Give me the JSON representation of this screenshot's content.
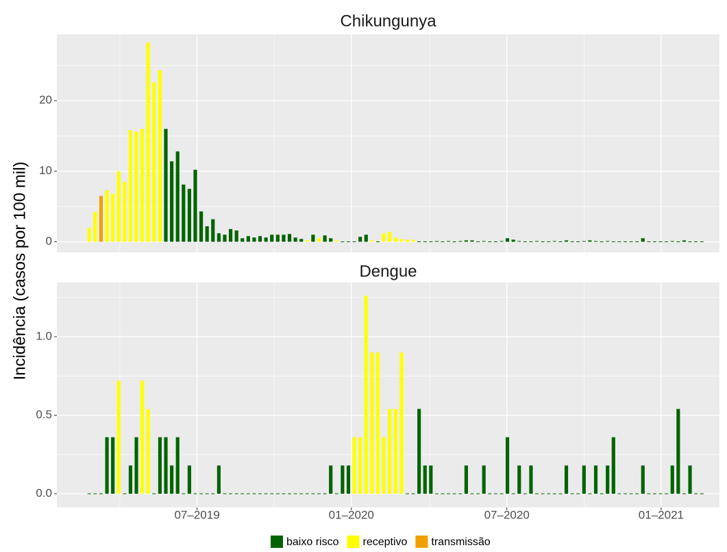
{
  "chart_data": {
    "type": "bar",
    "y_label": "Incidência (casos por 100 mil)",
    "legend": "bottom",
    "grid": true,
    "series": [
      {
        "name": "baixo risco",
        "color": "#006400"
      },
      {
        "name": "receptivo",
        "color": "#ffff00"
      },
      {
        "name": "transmissão",
        "color": "#f0a000"
      }
    ],
    "x": [
      1,
      2,
      3,
      4,
      5,
      6,
      7,
      8,
      9,
      10,
      11,
      12,
      13,
      14,
      15,
      16,
      17,
      18,
      19,
      20,
      21,
      22,
      23,
      24,
      25,
      26,
      27,
      28,
      29,
      30,
      31,
      32,
      33,
      34,
      35,
      36,
      37,
      38,
      39,
      40,
      41,
      42,
      43,
      44,
      45,
      46,
      47,
      48,
      49,
      50,
      51,
      52,
      53,
      54,
      55,
      56,
      57,
      58,
      59,
      60,
      61,
      62,
      63,
      64,
      65,
      66,
      67,
      68,
      69,
      70,
      71,
      72,
      73,
      74,
      75,
      76,
      77,
      78,
      79,
      80,
      81,
      82,
      83,
      84,
      85,
      86,
      87,
      88,
      89,
      90,
      91,
      92,
      93,
      94,
      95,
      96,
      97,
      98,
      99,
      100,
      101,
      102,
      103,
      104,
      105
    ],
    "xlim": [
      -4.5,
      108
    ],
    "xticks": [
      {
        "value": 19.3,
        "label": "07–2019"
      },
      {
        "value": 45.5,
        "label": "01–2020"
      },
      {
        "value": 71.9,
        "label": "07–2020"
      },
      {
        "value": 98.1,
        "label": "01–2021"
      }
    ],
    "panels": [
      {
        "title": "Chikungunya",
        "ylim": [
          -1.5,
          29.4
        ],
        "yticks": [
          0,
          10,
          20
        ],
        "values": [
          [
            null,
            null,
            null,
            null,
            null,
            null,
            null,
            null,
            null,
            null,
            null,
            null,
            null,
            16.0,
            11.4,
            12.8,
            8.1,
            7.5,
            10.2,
            4.3,
            2.2,
            3.2,
            1.2,
            1.0,
            1.8,
            1.6,
            0.5,
            0.8,
            0.6,
            0.8,
            0.6,
            1.0,
            1.0,
            1.0,
            1.1,
            0.6,
            0.4,
            null,
            1.0,
            null,
            0.9,
            0.5,
            null,
            0,
            0,
            0,
            0.7,
            1.0,
            null,
            0,
            null,
            null,
            null,
            null,
            null,
            null,
            0,
            0,
            0,
            0.1,
            0,
            0.1,
            0,
            0.1,
            0.2,
            0.2,
            0,
            0.1,
            0,
            0,
            0.1,
            0.5,
            0.3,
            0.1,
            0,
            0,
            0.1,
            0,
            0,
            0.1,
            0,
            0.2,
            0,
            0,
            0.1,
            0.2,
            0.1,
            0,
            0.1,
            0,
            0,
            0,
            0,
            0,
            0.5,
            0,
            0,
            0,
            0,
            0.1,
            0,
            0.2,
            0,
            0,
            0
          ],
          [
            2.0,
            4.2,
            null,
            7.3,
            6.8,
            10.0,
            8.5,
            15.8,
            15.6,
            16.0,
            28.2,
            22.6,
            24.3,
            null,
            null,
            null,
            null,
            null,
            null,
            null,
            null,
            null,
            null,
            null,
            null,
            null,
            null,
            null,
            null,
            null,
            null,
            null,
            null,
            null,
            null,
            null,
            null,
            0.2,
            null,
            0.5,
            null,
            null,
            0.2,
            null,
            null,
            null,
            null,
            null,
            0.2,
            null,
            1.2,
            1.4,
            0.6,
            0.4,
            0.3,
            0.3,
            null,
            null,
            null,
            null,
            null,
            null,
            null,
            null,
            null,
            null,
            null,
            null,
            null,
            null,
            null,
            null,
            null,
            null,
            null,
            null,
            null,
            null,
            null,
            null,
            null,
            null,
            null,
            null,
            null,
            null,
            null,
            null,
            null,
            null,
            null,
            null,
            null,
            null,
            null,
            null,
            null,
            null,
            null,
            null,
            null,
            null,
            null,
            null,
            null
          ],
          [
            null,
            null,
            6.5,
            null,
            null,
            null,
            null,
            null,
            null,
            null,
            null,
            null,
            null,
            null,
            null,
            null,
            null,
            null,
            null,
            null,
            null,
            null,
            null,
            null,
            null,
            null,
            null,
            null,
            null,
            null,
            null,
            null,
            null,
            null,
            null,
            null,
            null,
            null,
            null,
            null,
            null,
            null,
            null,
            null,
            null,
            null,
            null,
            null,
            null,
            null,
            null,
            null,
            null,
            null,
            null,
            null,
            null,
            null,
            null,
            null,
            null,
            null,
            null,
            null,
            null,
            null,
            null,
            null,
            null,
            null,
            null,
            null,
            null,
            null,
            null,
            null,
            null,
            null,
            null,
            null,
            null,
            null,
            null,
            null,
            null,
            null,
            null,
            null,
            null,
            null,
            null,
            null,
            null,
            null,
            null,
            null,
            null,
            null,
            null,
            null,
            null,
            null,
            null,
            null,
            null
          ]
        ]
      },
      {
        "title": "Dengue",
        "ylim": [
          -0.087,
          1.345
        ],
        "yticks": [
          {
            "value": 0,
            "label": "0.0"
          },
          {
            "value": 0.5,
            "label": "0.5"
          },
          {
            "value": 1,
            "label": "1.0"
          }
        ],
        "values": [
          [
            0,
            0,
            0,
            0.36,
            0.36,
            null,
            0,
            0.18,
            0.36,
            null,
            null,
            0,
            0.36,
            0.36,
            0.18,
            0.36,
            0,
            0.18,
            0,
            0,
            0,
            0,
            0.18,
            0,
            0,
            0,
            0,
            0,
            0,
            0,
            0,
            0,
            0,
            0,
            0,
            0,
            0,
            0,
            0,
            0,
            0,
            0.18,
            0,
            0.18,
            0.18,
            null,
            null,
            null,
            null,
            null,
            null,
            null,
            null,
            null,
            0,
            0,
            0.54,
            0.18,
            0.18,
            0,
            0,
            0,
            0,
            0,
            0.18,
            0,
            0,
            0.18,
            0,
            0,
            0,
            0.36,
            0,
            0.18,
            0,
            0.18,
            0,
            0,
            0,
            0,
            0,
            0.18,
            0,
            0,
            0.18,
            0,
            0.18,
            0,
            0.18,
            0.36,
            0,
            0,
            0,
            0,
            0.18,
            0,
            0,
            0,
            0,
            0.18,
            0.54,
            0,
            0.18,
            0,
            0
          ],
          [
            null,
            null,
            null,
            null,
            null,
            0.72,
            null,
            null,
            null,
            0.72,
            0.54,
            null,
            null,
            null,
            null,
            null,
            null,
            null,
            null,
            null,
            null,
            null,
            null,
            null,
            null,
            null,
            null,
            null,
            null,
            null,
            null,
            null,
            null,
            null,
            null,
            null,
            null,
            null,
            null,
            null,
            null,
            null,
            null,
            null,
            null,
            0.36,
            0.36,
            1.26,
            0.9,
            0.9,
            0.36,
            0.54,
            0.54,
            0.9,
            null,
            null,
            null,
            null,
            null,
            null,
            null,
            null,
            null,
            null,
            null,
            null,
            null,
            null,
            null,
            null,
            null,
            null,
            null,
            null,
            null,
            null,
            null,
            null,
            null,
            null,
            null,
            null,
            null,
            null,
            null,
            null,
            null,
            null,
            null,
            null,
            null,
            null,
            null,
            null,
            null,
            null,
            null,
            null,
            null,
            null,
            null,
            null,
            null,
            null,
            null
          ],
          [
            null,
            null,
            null,
            null,
            null,
            null,
            null,
            null,
            null,
            null,
            null,
            null,
            null,
            null,
            null,
            null,
            null,
            null,
            null,
            null,
            null,
            null,
            null,
            null,
            null,
            null,
            null,
            null,
            null,
            null,
            null,
            null,
            null,
            null,
            null,
            null,
            null,
            null,
            null,
            null,
            null,
            null,
            null,
            null,
            null,
            null,
            null,
            null,
            null,
            null,
            null,
            null,
            null,
            null,
            null,
            null,
            null,
            null,
            null,
            null,
            null,
            null,
            null,
            null,
            null,
            null,
            null,
            null,
            null,
            null,
            null,
            null,
            null,
            null,
            null,
            null,
            null,
            null,
            null,
            null,
            null,
            null,
            null,
            null,
            null,
            null,
            null,
            null,
            null,
            null,
            null,
            null,
            null,
            null,
            null,
            null,
            null,
            null,
            null,
            null,
            null,
            null,
            null,
            null,
            null
          ]
        ]
      }
    ]
  }
}
